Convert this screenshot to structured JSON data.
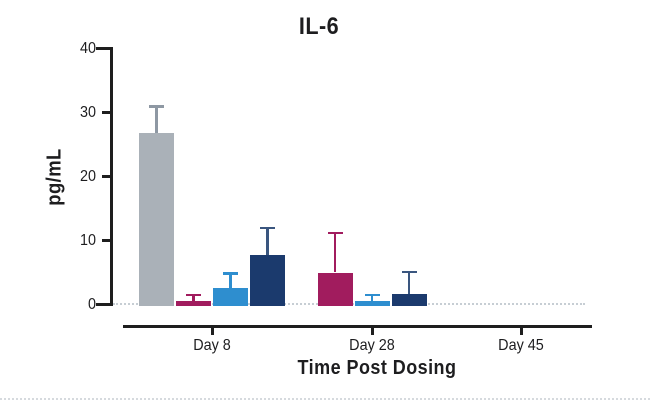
{
  "chart_data": {
    "type": "bar",
    "title": "IL-6",
    "xlabel": "Time Post Dosing",
    "ylabel": "pg/mL",
    "categories": [
      "Day 8",
      "Day 28",
      "Day 45"
    ],
    "ylim": [
      0,
      40
    ],
    "yticks": [
      0,
      10,
      20,
      30,
      40
    ],
    "grid": false,
    "legend_position": "none",
    "error_bars": "upper",
    "baseline_style": "dotted",
    "axis_color": "#1e1e1e",
    "series": [
      {
        "id": "gray",
        "color": "#aab1b8",
        "error_color": "#8e98a3",
        "values": [
          26.8,
          null,
          null
        ],
        "errors": [
          4.2,
          null,
          null
        ]
      },
      {
        "id": "magenta",
        "color": "#a11c5e",
        "error_color": "#a11c5e",
        "values": [
          0.6,
          5.0,
          null
        ],
        "errors": [
          0.9,
          6.2,
          null
        ]
      },
      {
        "id": "light-blue",
        "color": "#2e8ecf",
        "error_color": "#2e8ecf",
        "values": [
          2.6,
          0.6,
          null
        ],
        "errors": [
          2.3,
          0.9,
          null
        ]
      },
      {
        "id": "navy",
        "color": "#1b3a6d",
        "error_color": "#3a567f",
        "values": [
          7.7,
          1.7,
          null
        ],
        "errors": [
          4.3,
          3.4,
          null
        ]
      }
    ]
  }
}
